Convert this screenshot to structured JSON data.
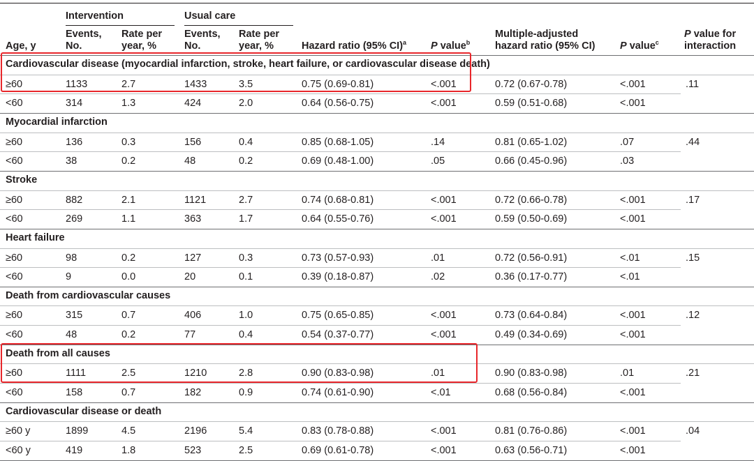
{
  "header": {
    "group_intervention": "Intervention",
    "group_usual": "Usual care",
    "age": "Age, y",
    "events": "Events,",
    "events_no": "No.",
    "rate": "Rate per",
    "rate_unit": "year, %",
    "hr": "Hazard ratio (95% CI)",
    "hr_sup": "a",
    "p": "P",
    "p_rest": " value",
    "p_sup": "b",
    "madj_1": "Multiple-adjusted",
    "madj_2": "hazard ratio (95% CI)",
    "p2_sup": "c",
    "pint_rest": " value for",
    "pint_2": "interaction"
  },
  "sections": [
    {
      "title": "Cardiovascular disease (myocardial infarction, stroke, heart failure, or cardiovascular disease death)",
      "pint": ".11",
      "rows": [
        {
          "age": "≥60",
          "ev_i": "1133",
          "rate_i": "2.7",
          "ev_u": "1433",
          "rate_u": "3.5",
          "hr": "0.75 (0.69-0.81)",
          "p": "<.001",
          "ahr": "0.72 (0.67-0.78)",
          "ap": "<.001"
        },
        {
          "age": "<60",
          "ev_i": "314",
          "rate_i": "1.3",
          "ev_u": "424",
          "rate_u": "2.0",
          "hr": "0.64 (0.56-0.75)",
          "p": "<.001",
          "ahr": "0.59 (0.51-0.68)",
          "ap": "<.001"
        }
      ]
    },
    {
      "title": "Myocardial infarction",
      "pint": ".44",
      "rows": [
        {
          "age": "≥60",
          "ev_i": "136",
          "rate_i": "0.3",
          "ev_u": "156",
          "rate_u": "0.4",
          "hr": "0.85 (0.68-1.05)",
          "p": ".14",
          "ahr": "0.81 (0.65-1.02)",
          "ap": ".07"
        },
        {
          "age": "<60",
          "ev_i": "38",
          "rate_i": "0.2",
          "ev_u": "48",
          "rate_u": "0.2",
          "hr": "0.69 (0.48-1.00)",
          "p": ".05",
          "ahr": "0.66 (0.45-0.96)",
          "ap": ".03"
        }
      ]
    },
    {
      "title": "Stroke",
      "pint": ".17",
      "rows": [
        {
          "age": "≥60",
          "ev_i": "882",
          "rate_i": "2.1",
          "ev_u": "1121",
          "rate_u": "2.7",
          "hr": "0.74 (0.68-0.81)",
          "p": "<.001",
          "ahr": "0.72 (0.66-0.78)",
          "ap": "<.001"
        },
        {
          "age": "<60",
          "ev_i": "269",
          "rate_i": "1.1",
          "ev_u": "363",
          "rate_u": "1.7",
          "hr": "0.64 (0.55-0.76)",
          "p": "<.001",
          "ahr": "0.59 (0.50-0.69)",
          "ap": "<.001"
        }
      ]
    },
    {
      "title": "Heart failure",
      "pint": ".15",
      "rows": [
        {
          "age": "≥60",
          "ev_i": "98",
          "rate_i": "0.2",
          "ev_u": "127",
          "rate_u": "0.3",
          "hr": "0.73 (0.57-0.93)",
          "p": ".01",
          "ahr": "0.72 (0.56-0.91)",
          "ap": "<.01"
        },
        {
          "age": "<60",
          "ev_i": "9",
          "rate_i": "0.0",
          "ev_u": "20",
          "rate_u": "0.1",
          "hr": "0.39 (0.18-0.87)",
          "p": ".02",
          "ahr": "0.36 (0.17-0.77)",
          "ap": "<.01"
        }
      ]
    },
    {
      "title": "Death from cardiovascular causes",
      "pint": ".12",
      "rows": [
        {
          "age": "≥60",
          "ev_i": "315",
          "rate_i": "0.7",
          "ev_u": "406",
          "rate_u": "1.0",
          "hr": "0.75 (0.65-0.85)",
          "p": "<.001",
          "ahr": "0.73 (0.64-0.84)",
          "ap": "<.001"
        },
        {
          "age": "<60",
          "ev_i": "48",
          "rate_i": "0.2",
          "ev_u": "77",
          "rate_u": "0.4",
          "hr": "0.54 (0.37-0.77)",
          "p": "<.001",
          "ahr": "0.49 (0.34-0.69)",
          "ap": "<.001"
        }
      ]
    },
    {
      "title": "Death from all causes",
      "pint": ".21",
      "rows": [
        {
          "age": "≥60",
          "ev_i": "1111",
          "rate_i": "2.5",
          "ev_u": "1210",
          "rate_u": "2.8",
          "hr": "0.90 (0.83-0.98)",
          "p": ".01",
          "ahr": "0.90 (0.83-0.98)",
          "ap": ".01"
        },
        {
          "age": "<60",
          "ev_i": "158",
          "rate_i": "0.7",
          "ev_u": "182",
          "rate_u": "0.9",
          "hr": "0.74 (0.61-0.90)",
          "p": "<.01",
          "ahr": "0.68 (0.56-0.84)",
          "ap": "<.001"
        }
      ]
    },
    {
      "title": "Cardiovascular disease or death",
      "pint": ".04",
      "rows": [
        {
          "age": "≥60 y",
          "ev_i": "1899",
          "rate_i": "4.5",
          "ev_u": "2196",
          "rate_u": "5.4",
          "hr": "0.83 (0.78-0.88)",
          "p": "<.001",
          "ahr": "0.81 (0.76-0.86)",
          "ap": "<.001"
        },
        {
          "age": "<60 y",
          "ev_i": "419",
          "rate_i": "1.8",
          "ev_u": "523",
          "rate_u": "2.5",
          "hr": "0.69 (0.61-0.78)",
          "p": "<.001",
          "ahr": "0.63 (0.56-0.71)",
          "ap": "<.001"
        }
      ]
    }
  ],
  "highlight_color": "#e8262b"
}
